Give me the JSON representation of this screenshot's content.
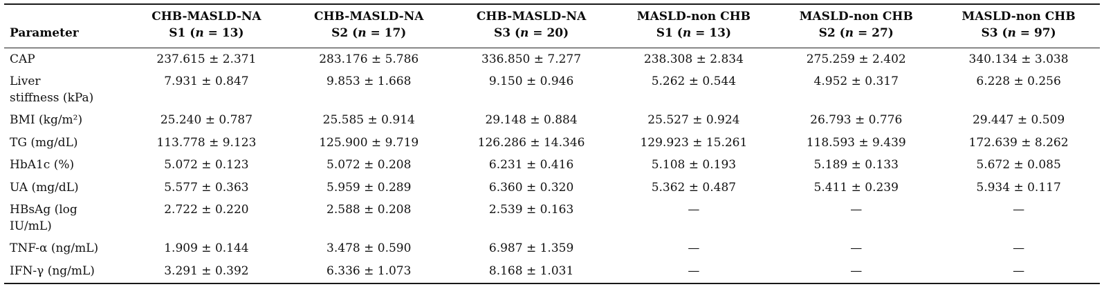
{
  "table": {
    "header": {
      "parameter_label": "Parameter",
      "columns": [
        {
          "group": "CHB-MASLD-NA",
          "sub_pre": "S1 (",
          "n": "n",
          "sub_post": " = 13)"
        },
        {
          "group": "CHB-MASLD-NA",
          "sub_pre": "S2 (",
          "n": "n",
          "sub_post": " = 17)"
        },
        {
          "group": "CHB-MASLD-NA",
          "sub_pre": "S3 (",
          "n": "n",
          "sub_post": " = 20)"
        },
        {
          "group": "MASLD-non CHB",
          "sub_pre": "S1 (",
          "n": "n",
          "sub_post": " = 13)"
        },
        {
          "group": "MASLD-non CHB",
          "sub_pre": "S2 (",
          "n": "n",
          "sub_post": " = 27)"
        },
        {
          "group": "MASLD-non CHB",
          "sub_pre": "S3 (",
          "n": "n",
          "sub_post": " = 97)"
        }
      ]
    },
    "rows": [
      {
        "parameter": "CAP",
        "values": [
          "237.615 ± 2.371",
          "283.176 ± 5.786",
          "336.850 ± 7.277",
          "238.308 ± 2.834",
          "275.259 ± 2.402",
          "340.134 ± 3.038"
        ]
      },
      {
        "parameter": "Liver\nstiffness (kPa)",
        "values": [
          "7.931 ± 0.847",
          "9.853 ± 1.668",
          "9.150 ± 0.946",
          "5.262 ± 0.544",
          "4.952 ± 0.317",
          "6.228 ± 0.256"
        ]
      },
      {
        "parameter": "BMI (kg/m²)",
        "values": [
          "25.240 ± 0.787",
          "25.585 ± 0.914",
          "29.148 ± 0.884",
          "25.527 ± 0.924",
          "26.793 ± 0.776",
          "29.447 ± 0.509"
        ]
      },
      {
        "parameter": "TG (mg/dL)",
        "values": [
          "113.778 ± 9.123",
          "125.900 ± 9.719",
          "126.286 ± 14.346",
          "129.923 ± 15.261",
          "118.593 ± 9.439",
          "172.639 ± 8.262"
        ]
      },
      {
        "parameter": "HbA1c (%)",
        "values": [
          "5.072 ± 0.123",
          "5.072 ± 0.208",
          "6.231 ± 0.416",
          "5.108 ± 0.193",
          "5.189 ± 0.133",
          "5.672 ± 0.085"
        ]
      },
      {
        "parameter": "UA (mg/dL)",
        "values": [
          "5.577 ± 0.363",
          "5.959 ± 0.289",
          "6.360 ± 0.320",
          "5.362 ± 0.487",
          "5.411 ± 0.239",
          "5.934 ± 0.117"
        ]
      },
      {
        "parameter": "HBsAg (log\nIU/mL)",
        "values": [
          "2.722 ± 0.220",
          "2.588 ± 0.208",
          "2.539 ± 0.163",
          "—",
          "—",
          "—"
        ]
      },
      {
        "parameter": "TNF-α (ng/mL)",
        "values": [
          "1.909 ± 0.144",
          "3.478 ± 0.590",
          "6.987 ± 1.359",
          "—",
          "—",
          "—"
        ]
      },
      {
        "parameter": "IFN-γ (ng/mL)",
        "values": [
          "3.291 ± 0.392",
          "6.336 ± 1.073",
          "8.168 ± 1.031",
          "—",
          "—",
          "—"
        ]
      }
    ]
  }
}
